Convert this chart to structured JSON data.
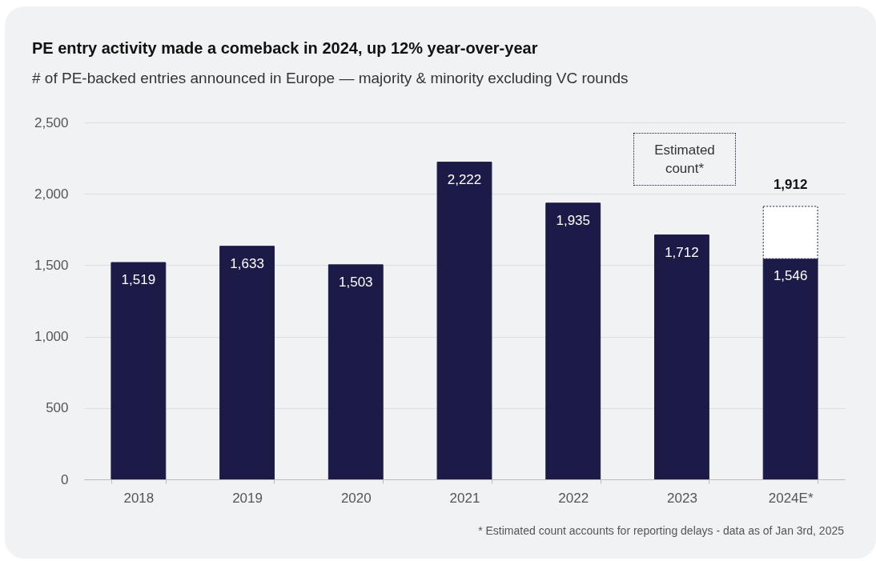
{
  "chart_data": {
    "type": "bar",
    "title": "PE entry activity made a comeback in 2024, up 12% year-over-year",
    "subtitle": "# of PE-backed entries announced in Europe — majority & minority excluding VC rounds",
    "categories": [
      "2018",
      "2019",
      "2020",
      "2021",
      "2022",
      "2023",
      "2024E*"
    ],
    "stacked": true,
    "series": [
      {
        "color": "#1c1b48",
        "values": [
          1519,
          1633,
          1503,
          2222,
          1935,
          1712,
          1546
        ],
        "value_labels": [
          "1,519",
          "1,633",
          "1,503",
          "2,222",
          "1,935",
          "1,712",
          "1,546"
        ]
      },
      {
        "color": "#ffffff",
        "line_style": "dotted",
        "values": [
          null,
          null,
          null,
          null,
          null,
          null,
          366
        ]
      }
    ],
    "totals": [
      null,
      null,
      null,
      null,
      null,
      null,
      "1,912"
    ],
    "ylim": [
      0,
      2500
    ],
    "yticks": [
      0,
      {
        "value": 500,
        "label": "500"
      },
      {
        "value": 1000,
        "label": "1,000"
      },
      {
        "value": 1500,
        "label": "1,500"
      },
      {
        "value": 2000,
        "label": "2,000"
      },
      {
        "value": 2500,
        "label": "2,500"
      }
    ],
    "grid": "y",
    "annotations": [
      "Estimated count*",
      "* Estimated count accounts for reporting delays - data as of Jan 3rd, 2025"
    ]
  }
}
